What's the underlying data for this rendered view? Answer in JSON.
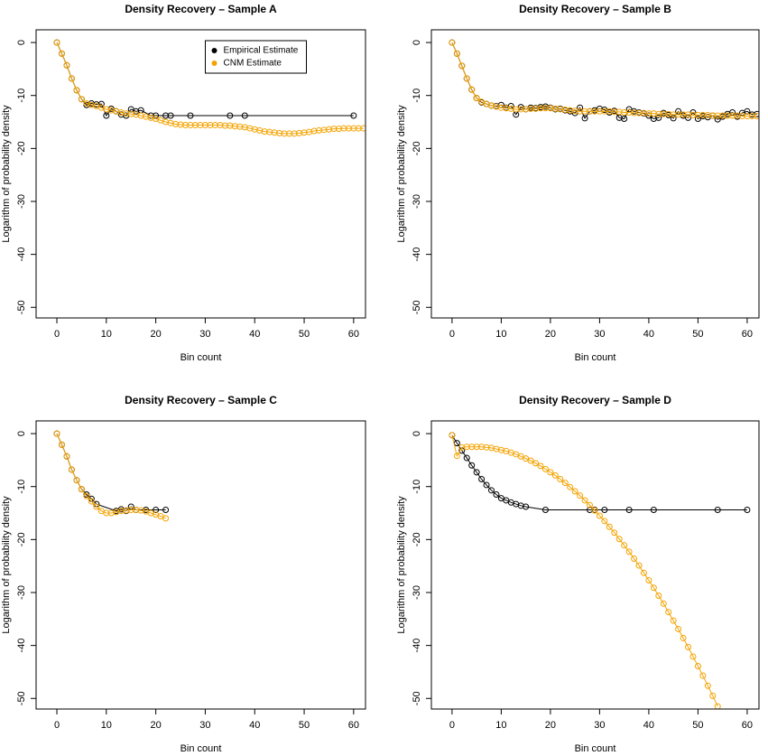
{
  "chart_data": [
    {
      "type": "line",
      "title": "Density Recovery – Sample A",
      "xlabel": "Bin count",
      "ylabel": "Logarithm of probability density",
      "xlim": [
        -4.2,
        62.4
      ],
      "ylim": [
        -52,
        2.4
      ],
      "xticks": [
        0,
        10,
        20,
        30,
        40,
        50,
        60
      ],
      "yticks": [
        0,
        -10,
        -20,
        -30,
        -40,
        -50
      ],
      "legend": "top",
      "series": [
        {
          "name": "Empirical Estimate",
          "color": "#000000",
          "x": [
            0,
            1,
            2,
            3,
            4,
            5,
            6,
            7,
            8,
            9,
            10,
            11,
            12,
            13,
            14,
            15,
            16,
            17,
            19,
            20,
            22,
            23,
            27,
            35,
            38,
            60
          ],
          "values": [
            0,
            -2.1,
            -4.3,
            -6.8,
            -9,
            -10.7,
            -11.8,
            -11.5,
            -11.7,
            -11.6,
            -13.8,
            -12.5,
            -13,
            -13.6,
            -13.8,
            -12.6,
            -13,
            -12.8,
            -13.8,
            -13.8,
            -13.8,
            -13.8,
            -13.8,
            -13.8,
            -13.8,
            -13.8
          ]
        },
        {
          "name": "CNM Estimate",
          "color": "#f4a300",
          "x": [
            0,
            1,
            2,
            3,
            4,
            5,
            6,
            7,
            8,
            9,
            10,
            11,
            12,
            13,
            14,
            15,
            16,
            17,
            18,
            19,
            20,
            21,
            22,
            23,
            24,
            25,
            26,
            27,
            28,
            29,
            30,
            31,
            32,
            33,
            34,
            35,
            36,
            37,
            38,
            39,
            40,
            41,
            42,
            43,
            44,
            45,
            46,
            47,
            48,
            49,
            50,
            51,
            52,
            53,
            54,
            55,
            56,
            57,
            58,
            59,
            60,
            61,
            62
          ],
          "values": [
            0,
            -2.1,
            -4.3,
            -6.8,
            -9.0,
            -10.7,
            -11.5,
            -11.8,
            -12.0,
            -12.3,
            -12.6,
            -12.8,
            -13.0,
            -13.2,
            -13.4,
            -13.5,
            -13.6,
            -13.8,
            -14.0,
            -14.2,
            -14.4,
            -14.7,
            -15.0,
            -15.2,
            -15.4,
            -15.5,
            -15.6,
            -15.6,
            -15.6,
            -15.6,
            -15.6,
            -15.6,
            -15.6,
            -15.6,
            -15.7,
            -15.7,
            -15.8,
            -15.9,
            -16.0,
            -16.2,
            -16.4,
            -16.6,
            -16.8,
            -16.9,
            -17.0,
            -17.1,
            -17.2,
            -17.2,
            -17.2,
            -17.1,
            -17.0,
            -16.9,
            -16.7,
            -16.6,
            -16.5,
            -16.4,
            -16.3,
            -16.3,
            -16.2,
            -16.2,
            -16.2,
            -16.2,
            -16.2
          ]
        }
      ]
    },
    {
      "type": "line",
      "title": "Density Recovery – Sample B",
      "xlabel": "Bin count",
      "ylabel": "Logarithm of probability density",
      "xlim": [
        -4.2,
        62.4
      ],
      "ylim": [
        -52,
        2.4
      ],
      "xticks": [
        0,
        10,
        20,
        30,
        40,
        50,
        60
      ],
      "yticks": [
        0,
        -10,
        -20,
        -30,
        -40,
        -50
      ],
      "series": [
        {
          "name": "Empirical Estimate",
          "color": "#000000",
          "x": [
            0,
            1,
            2,
            3,
            4,
            5,
            6,
            7,
            8,
            9,
            10,
            11,
            12,
            13,
            14,
            15,
            16,
            17,
            18,
            19,
            20,
            21,
            22,
            23,
            24,
            25,
            26,
            27,
            28,
            29,
            30,
            31,
            32,
            33,
            34,
            35,
            36,
            37,
            38,
            39,
            40,
            41,
            42,
            43,
            44,
            45,
            46,
            47,
            48,
            49,
            50,
            51,
            52,
            53,
            54,
            55,
            56,
            57,
            58,
            59,
            60,
            61,
            62
          ],
          "values": [
            0,
            -2.1,
            -4.4,
            -6.8,
            -8.9,
            -10.5,
            -11.3,
            -11.6,
            -11.9,
            -12.0,
            -11.8,
            -12.3,
            -12.0,
            -13.6,
            -12.2,
            -12.6,
            -12.3,
            -12.4,
            -12.2,
            -12.1,
            -12.3,
            -12.6,
            -12.5,
            -12.8,
            -13.0,
            -13.3,
            -12.3,
            -14.3,
            -13.0,
            -12.8,
            -12.5,
            -12.7,
            -13.2,
            -12.9,
            -14.2,
            -14.4,
            -12.6,
            -13.0,
            -13.2,
            -13.4,
            -13.8,
            -14.4,
            -14.2,
            -13.3,
            -13.7,
            -14.3,
            -13.0,
            -13.8,
            -14.2,
            -13.2,
            -14.4,
            -13.9,
            -14.1,
            -13.8,
            -14.5,
            -14.0,
            -13.5,
            -13.2,
            -14.0,
            -13.3,
            -13.0,
            -13.6,
            -13.5
          ]
        },
        {
          "name": "CNM Estimate",
          "color": "#f4a300",
          "x": [
            0,
            1,
            2,
            3,
            4,
            5,
            6,
            7,
            8,
            9,
            10,
            11,
            12,
            13,
            14,
            15,
            16,
            17,
            18,
            19,
            20,
            21,
            22,
            23,
            24,
            25,
            26,
            27,
            28,
            29,
            30,
            31,
            32,
            33,
            34,
            35,
            36,
            37,
            38,
            39,
            40,
            41,
            42,
            43,
            44,
            45,
            46,
            47,
            48,
            49,
            50,
            51,
            52,
            53,
            54,
            55,
            56,
            57,
            58,
            59,
            60,
            61,
            62
          ],
          "values": [
            0,
            -2.1,
            -4.4,
            -6.8,
            -8.9,
            -10.5,
            -11.2,
            -11.6,
            -11.9,
            -12.1,
            -12.3,
            -12.4,
            -12.5,
            -12.6,
            -12.6,
            -12.6,
            -12.5,
            -12.5,
            -12.4,
            -12.4,
            -12.4,
            -12.5,
            -12.6,
            -12.7,
            -12.8,
            -12.9,
            -13.0,
            -13.0,
            -13.0,
            -13.0,
            -13.0,
            -13.0,
            -13.0,
            -13.1,
            -13.1,
            -13.2,
            -13.2,
            -13.3,
            -13.3,
            -13.3,
            -13.4,
            -13.4,
            -13.5,
            -13.5,
            -13.5,
            -13.6,
            -13.6,
            -13.6,
            -13.6,
            -13.7,
            -13.7,
            -13.7,
            -13.7,
            -13.8,
            -13.8,
            -13.8,
            -13.8,
            -13.8,
            -13.8,
            -13.9,
            -13.9,
            -13.9,
            -13.9
          ]
        }
      ]
    },
    {
      "type": "line",
      "title": "Density Recovery – Sample C",
      "xlabel": "Bin count",
      "ylabel": "Logarithm of probability density",
      "xlim": [
        -4.2,
        62.4
      ],
      "ylim": [
        -52,
        2.4
      ],
      "xticks": [
        0,
        10,
        20,
        30,
        40,
        50,
        60
      ],
      "yticks": [
        0,
        -10,
        -20,
        -30,
        -40,
        -50
      ],
      "series": [
        {
          "name": "Empirical Estimate",
          "color": "#000000",
          "x": [
            0,
            1,
            2,
            3,
            4,
            5,
            6,
            7,
            8,
            12,
            13,
            14,
            15,
            16,
            18,
            20,
            22
          ],
          "values": [
            0,
            -2.1,
            -4.3,
            -6.8,
            -8.8,
            -10.5,
            -11.5,
            -12.3,
            -13.3,
            -14.6,
            -14.3,
            -14.6,
            -13.8,
            -14.4,
            -14.4,
            -14.4,
            -14.4
          ]
        },
        {
          "name": "CNM Estimate",
          "color": "#f4a300",
          "x": [
            0,
            1,
            2,
            3,
            4,
            5,
            6,
            7,
            8,
            9,
            10,
            11,
            12,
            13,
            14,
            15,
            16,
            17,
            18,
            19,
            20,
            21,
            22
          ],
          "values": [
            0,
            -2.1,
            -4.3,
            -6.8,
            -8.8,
            -10.5,
            -11.8,
            -12.8,
            -13.8,
            -14.6,
            -15.0,
            -15.0,
            -14.8,
            -14.6,
            -14.5,
            -14.4,
            -14.4,
            -14.5,
            -14.7,
            -15.0,
            -15.3,
            -15.6,
            -16.0
          ]
        }
      ]
    },
    {
      "type": "line",
      "title": "Density Recovery – Sample D",
      "xlabel": "Bin count",
      "ylabel": "Logarithm of probability density",
      "xlim": [
        -4.2,
        62.4
      ],
      "ylim": [
        -52,
        2.4
      ],
      "xticks": [
        0,
        10,
        20,
        30,
        40,
        50,
        60
      ],
      "yticks": [
        0,
        -10,
        -20,
        -30,
        -40,
        -50
      ],
      "series": [
        {
          "name": "Empirical Estimate",
          "color": "#000000",
          "x": [
            0,
            1,
            2,
            3,
            4,
            5,
            6,
            7,
            8,
            9,
            10,
            11,
            12,
            13,
            14,
            15,
            19,
            28,
            29,
            31,
            36,
            41,
            54,
            60
          ],
          "values": [
            -0.3,
            -1.8,
            -3.2,
            -4.6,
            -6.0,
            -7.3,
            -8.6,
            -9.7,
            -10.7,
            -11.5,
            -12.2,
            -12.6,
            -13.0,
            -13.3,
            -13.6,
            -13.8,
            -14.4,
            -14.4,
            -14.4,
            -14.4,
            -14.4,
            -14.4,
            -14.4,
            -14.4
          ]
        },
        {
          "name": "CNM Estimate",
          "color": "#f4a300",
          "x": [
            0,
            1,
            2,
            3,
            4,
            5,
            6,
            7,
            8,
            9,
            10,
            11,
            12,
            13,
            14,
            15,
            16,
            17,
            18,
            19,
            20,
            21,
            22,
            23,
            24,
            25,
            26,
            27,
            28,
            29,
            30,
            31,
            32,
            33,
            34,
            35,
            36,
            37,
            38,
            39,
            40,
            41,
            42,
            43,
            44,
            45,
            46,
            47,
            48,
            49,
            50,
            51,
            52,
            53,
            54
          ],
          "values": [
            -0.3,
            -4.2,
            -2.6,
            -2.5,
            -2.5,
            -2.5,
            -2.5,
            -2.6,
            -2.7,
            -2.9,
            -3.1,
            -3.3,
            -3.6,
            -3.9,
            -4.3,
            -4.7,
            -5.1,
            -5.6,
            -6.1,
            -6.7,
            -7.3,
            -7.9,
            -8.6,
            -9.3,
            -10.1,
            -10.9,
            -11.7,
            -12.6,
            -13.5,
            -14.5,
            -15.5,
            -16.5,
            -17.6,
            -18.7,
            -19.9,
            -21.1,
            -22.3,
            -23.6,
            -24.9,
            -26.3,
            -27.7,
            -29.1,
            -30.6,
            -32.1,
            -33.7,
            -35.3,
            -36.9,
            -38.6,
            -40.3,
            -42.1,
            -43.9,
            -45.7,
            -47.6,
            -49.5,
            -51.5
          ]
        }
      ]
    }
  ]
}
